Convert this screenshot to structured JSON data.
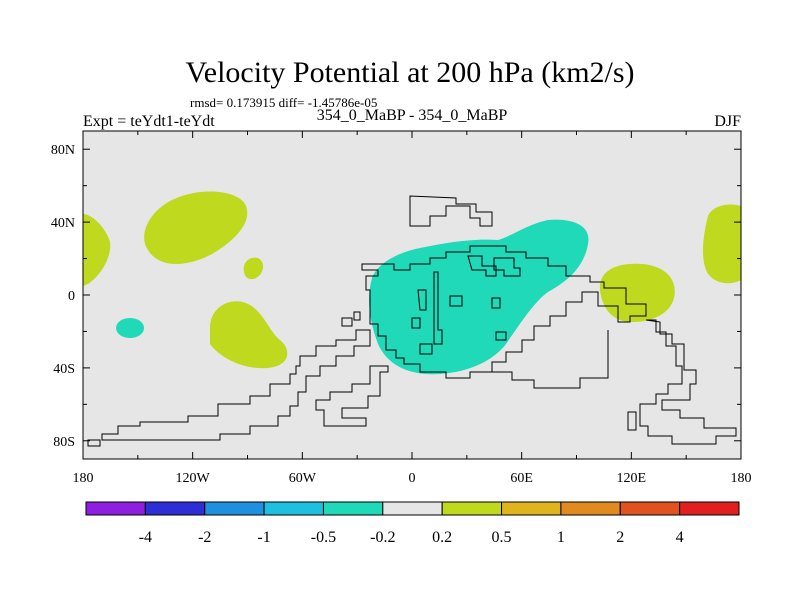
{
  "title": "Velocity Potential at 200 hPa (km2/s)",
  "stats": "rmsd= 0.173915 diff= -1.45786e-05",
  "left_label": "Expt = teYdt1-teYdt",
  "center_label": "354_0_MaBP - 354_0_MaBP",
  "right_label": "DJF",
  "chart_data": {
    "type": "contour-map",
    "variable": "velocity potential difference",
    "units": "km2/s",
    "level": "200 hPa",
    "season": "DJF",
    "xlim": [
      -180,
      180
    ],
    "ylim": [
      -90,
      90
    ],
    "x_ticks": [
      {
        "lon": -180,
        "label": "180"
      },
      {
        "lon": -120,
        "label": "120W"
      },
      {
        "lon": -60,
        "label": "60W"
      },
      {
        "lon": 0,
        "label": "0"
      },
      {
        "lon": 60,
        "label": "60E"
      },
      {
        "lon": 120,
        "label": "120E"
      },
      {
        "lon": 180,
        "label": "180"
      }
    ],
    "y_ticks": [
      {
        "lat": 80,
        "label": "80N"
      },
      {
        "lat": 40,
        "label": "40N"
      },
      {
        "lat": 0,
        "label": "0"
      },
      {
        "lat": -40,
        "label": "40S"
      },
      {
        "lat": -80,
        "label": "80S"
      }
    ],
    "colorbar": {
      "bins": [
        {
          "color": "#8f1fe0"
        },
        {
          "color": "#2e2ed6"
        },
        {
          "color": "#1f8fe0"
        },
        {
          "color": "#1fbfe0"
        },
        {
          "color": "#1fd9b8"
        },
        {
          "color": "#e6e6e6"
        },
        {
          "color": "#bfd91f"
        },
        {
          "color": "#e0b41f"
        },
        {
          "color": "#e08a1f"
        },
        {
          "color": "#e0521f"
        },
        {
          "color": "#e01f1f"
        }
      ],
      "boundaries": [
        "-4",
        "-2",
        "-1",
        "-0.5",
        "-0.2",
        "0.2",
        "0.5",
        "1",
        "2",
        "4"
      ]
    },
    "regions": [
      {
        "name": "negative-center",
        "sign": "negative",
        "color": "#1fd9b8",
        "approx_center": [
          25,
          5
        ]
      },
      {
        "name": "negative-small",
        "sign": "negative",
        "color": "#1fd9b8",
        "approx_center": [
          -153,
          -18
        ]
      },
      {
        "name": "positive-north-pacific",
        "sign": "positive",
        "color": "#bfd91f",
        "approx_center": [
          -130,
          40
        ]
      },
      {
        "name": "positive-small-atlantic",
        "sign": "positive",
        "color": "#bfd91f",
        "approx_center": [
          -88,
          13
        ]
      },
      {
        "name": "positive-south-atlantic",
        "sign": "positive",
        "color": "#bfd91f",
        "approx_center": [
          -100,
          -20
        ]
      },
      {
        "name": "positive-indian",
        "sign": "positive",
        "color": "#bfd91f",
        "approx_center": [
          120,
          2
        ]
      },
      {
        "name": "positive-west-edge",
        "sign": "positive",
        "color": "#bfd91f",
        "approx_center": [
          -175,
          25
        ]
      },
      {
        "name": "positive-east-edge",
        "sign": "positive",
        "color": "#bfd91f",
        "approx_center": [
          173,
          28
        ]
      }
    ],
    "background_color": "#e6e6e6"
  }
}
